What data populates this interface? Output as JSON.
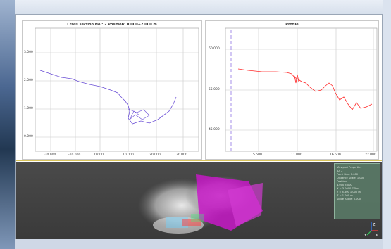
{
  "left_panel": {
    "title": "Cross section No.: 2   Position: 0.000+2.000 m",
    "y_ticks": [
      "3.000",
      "2.000",
      "1.000",
      "0.000"
    ],
    "x_ticks": [
      "-20.000",
      "-10.000",
      "0.000",
      "10.000",
      "20.000",
      "30.000"
    ]
  },
  "right_panel": {
    "title": "Profile",
    "y_ticks": [
      "60.000",
      "55.000",
      "45.000"
    ],
    "x_ticks": [
      "5.500",
      "11.000",
      "16.500",
      "22.000"
    ]
  },
  "properties": {
    "lines": [
      "Viewport Properties",
      "ID: 2",
      "Point Size: 1.000",
      "Distance Scale: 1.000",
      "Position:",
      "4.000 5.000",
      "X = 3.0000 7.5m",
      "Y = 4.800 1.000 m",
      "Z = 1.000 m",
      "Slope Angle: 0.000"
    ]
  },
  "axes": {
    "x_label": "X",
    "y_label": "Y",
    "z_label": "Z"
  },
  "colors": {
    "profile_line": "#ff2a2a",
    "section_line": "#6b4fd6",
    "splitter": "#d8c35a"
  }
}
